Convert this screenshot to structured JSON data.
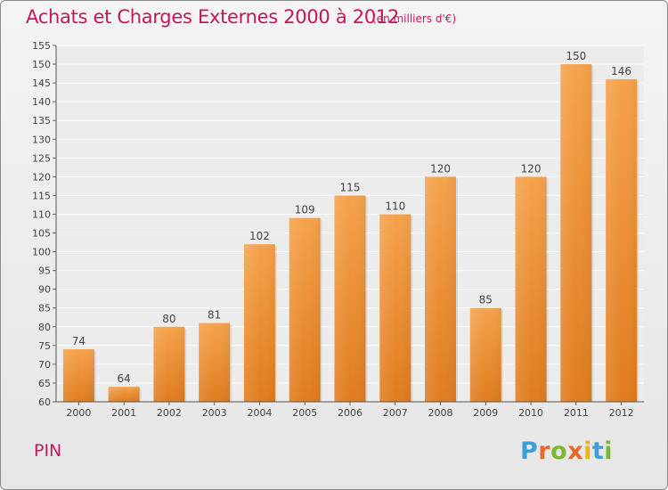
{
  "chart_data": {
    "type": "bar",
    "title": "Achats et Charges Externes 2000 à 2012",
    "unit_note": "(en milliers d'€)",
    "categories": [
      "2000",
      "2001",
      "2002",
      "2003",
      "2004",
      "2005",
      "2006",
      "2007",
      "2008",
      "2009",
      "2010",
      "2011",
      "2012"
    ],
    "values": [
      74,
      64,
      80,
      81,
      102,
      109,
      115,
      110,
      120,
      85,
      120,
      150,
      146
    ],
    "ylim": [
      60,
      155
    ],
    "ytick_step": 5,
    "grid": true,
    "bar_color_top": "#f5a24c",
    "bar_color_bottom": "#e07c1e"
  },
  "footer": {
    "commune": "PIN",
    "logo": "Proxiti",
    "logo_colors": [
      "#3b9fd8",
      "#e8682a",
      "#7cb82f",
      "#e8682a",
      "#f2b600",
      "#3b9fd8",
      "#7cb82f"
    ]
  }
}
